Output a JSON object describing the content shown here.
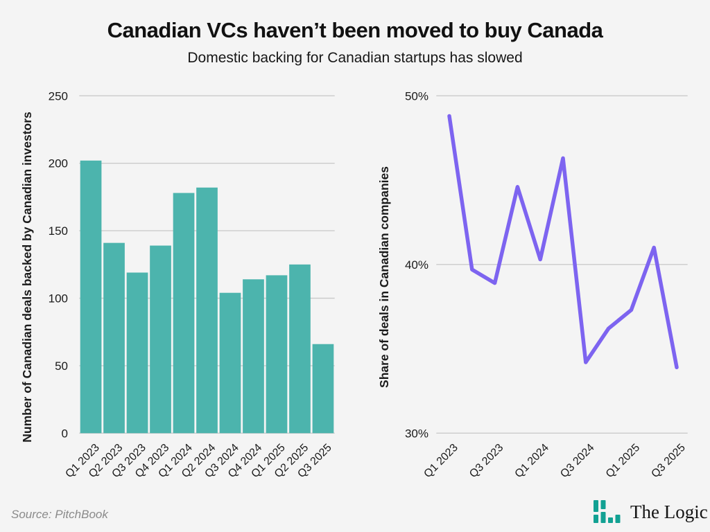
{
  "page": {
    "title": "Canadian VCs haven’t been moved to buy Canada",
    "subtitle": "Domestic backing for Canadian startups has slowed",
    "source": "Source: PitchBook",
    "logo_text": "The Logic"
  },
  "colors": {
    "background": "#f4f4f4",
    "bar": "#4cb4ad",
    "line": "#7d64f0",
    "grid": "#cbcbcb",
    "text": "#1a1a1a",
    "muted": "#8a8a8a",
    "logo": "#12a193"
  },
  "chart_data": [
    {
      "type": "bar",
      "ylabel": "Number of Canadian deals backed by Canadian investors",
      "categories": [
        "Q1 2023",
        "Q2 2023",
        "Q3 2023",
        "Q4 2023",
        "Q1 2024",
        "Q2 2024",
        "Q3 2024",
        "Q4 2024",
        "Q1 2025",
        "Q2 2025",
        "Q3 2025"
      ],
      "values": [
        202,
        141,
        119,
        139,
        178,
        182,
        104,
        114,
        117,
        125,
        66
      ],
      "ylim": [
        0,
        250
      ],
      "yticks": [
        0,
        50,
        100,
        150,
        200,
        250
      ],
      "grid": true,
      "legend": "none",
      "xtick_rotation": 45,
      "xticks_every": 1
    },
    {
      "type": "line",
      "ylabel": "Share of deals in Canadian companies",
      "categories": [
        "Q1 2023",
        "Q2 2023",
        "Q3 2023",
        "Q4 2023",
        "Q1 2024",
        "Q2 2024",
        "Q3 2024",
        "Q4 2024",
        "Q1 2025",
        "Q2 2025",
        "Q3 2025"
      ],
      "values": [
        48.8,
        39.7,
        38.9,
        44.6,
        40.3,
        46.3,
        34.2,
        36.2,
        37.3,
        41.0,
        33.9
      ],
      "ylim": [
        30,
        50
      ],
      "yticks": [
        30,
        40,
        50
      ],
      "ytick_format": "percent",
      "grid": true,
      "legend": "none",
      "xtick_rotation": 45,
      "xticks_every": 2
    }
  ]
}
